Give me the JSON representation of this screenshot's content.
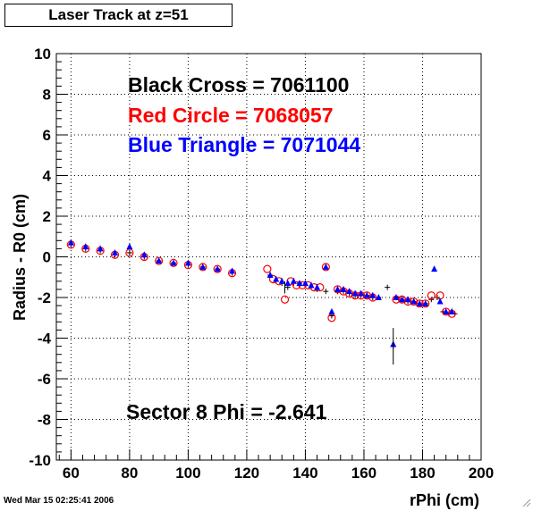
{
  "title": "Laser Track at z=51",
  "timestamp": "Wed Mar 15 02:25:41 2006",
  "legend": [
    {
      "text": "Black Cross  = 7061100",
      "color": "#000000"
    },
    {
      "text": "Red Circle = 7068057",
      "color": "#ff0000"
    },
    {
      "text": "Blue Triangle = 7071044",
      "color": "#0000ff"
    }
  ],
  "annotation": "Sector 8 Phi = -2.641",
  "chart_data": {
    "type": "scatter",
    "title": "Laser Track at z=51",
    "xlabel": "rPhi (cm)",
    "ylabel": "Radius - R0 (cm)",
    "xlim": [
      55,
      200
    ],
    "ylim": [
      -10,
      10
    ],
    "xticks": [
      60,
      80,
      100,
      120,
      140,
      160,
      180,
      200
    ],
    "yticks": [
      -10,
      -8,
      -6,
      -4,
      -2,
      0,
      2,
      4,
      6,
      8,
      10
    ],
    "grid": true,
    "series": [
      {
        "name": "Black Cross  = 7061100",
        "marker": "cross",
        "color": "#000000",
        "points": [
          [
            60,
            0.6
          ],
          [
            65,
            0.4
          ],
          [
            70,
            0.3
          ],
          [
            75,
            0.1
          ],
          [
            80,
            0.2
          ],
          [
            85,
            0.0
          ],
          [
            90,
            -0.2
          ],
          [
            95,
            -0.3
          ],
          [
            100,
            -0.4
          ],
          [
            105,
            -0.5
          ],
          [
            110,
            -0.6
          ],
          [
            115,
            -0.8
          ],
          [
            128,
            -0.9
          ],
          [
            130,
            -1.2
          ],
          [
            132,
            -1.3
          ],
          [
            134,
            -1.5
          ],
          [
            136,
            -1.3
          ],
          [
            138,
            -1.3
          ],
          [
            140,
            -1.4
          ],
          [
            142,
            -1.5
          ],
          [
            144,
            -1.6
          ],
          [
            147,
            -1.7
          ],
          [
            149,
            -2.9
          ],
          [
            151,
            -1.7
          ],
          [
            153,
            -1.7
          ],
          [
            155,
            -1.8
          ],
          [
            157,
            -1.9
          ],
          [
            159,
            -1.9
          ],
          [
            161,
            -1.9
          ],
          [
            163,
            -2.0
          ],
          [
            165,
            -2.0
          ],
          [
            168,
            -1.5
          ],
          [
            170,
            -4.4
          ],
          [
            171,
            -2.0
          ],
          [
            173,
            -2.1
          ],
          [
            175,
            -2.2
          ],
          [
            177,
            -2.2
          ],
          [
            179,
            -2.3
          ],
          [
            181,
            -2.3
          ],
          [
            183,
            -2.1
          ],
          [
            185,
            -2.0
          ],
          [
            187,
            -2.7
          ],
          [
            189,
            -2.8
          ],
          [
            191,
            -2.8
          ]
        ]
      },
      {
        "name": "Red Circle = 7068057",
        "marker": "circle",
        "color": "#ff0000",
        "points": [
          [
            60,
            0.6
          ],
          [
            65,
            0.4
          ],
          [
            70,
            0.3
          ],
          [
            75,
            0.1
          ],
          [
            80,
            0.2
          ],
          [
            85,
            0.0
          ],
          [
            90,
            -0.2
          ],
          [
            95,
            -0.3
          ],
          [
            100,
            -0.4
          ],
          [
            105,
            -0.5
          ],
          [
            110,
            -0.6
          ],
          [
            115,
            -0.8
          ],
          [
            127,
            -0.6
          ],
          [
            129,
            -1.1
          ],
          [
            131,
            -1.2
          ],
          [
            133,
            -2.1
          ],
          [
            135,
            -1.2
          ],
          [
            137,
            -1.4
          ],
          [
            139,
            -1.4
          ],
          [
            141,
            -1.4
          ],
          [
            143,
            -1.5
          ],
          [
            145,
            -1.5
          ],
          [
            147,
            -0.5
          ],
          [
            149,
            -3.0
          ],
          [
            151,
            -1.6
          ],
          [
            153,
            -1.7
          ],
          [
            155,
            -1.8
          ],
          [
            157,
            -1.9
          ],
          [
            159,
            -1.9
          ],
          [
            161,
            -1.9
          ],
          [
            163,
            -2.0
          ],
          [
            171,
            -2.1
          ],
          [
            173,
            -2.1
          ],
          [
            175,
            -2.2
          ],
          [
            177,
            -2.2
          ],
          [
            179,
            -2.3
          ],
          [
            181,
            -2.3
          ],
          [
            183,
            -1.9
          ],
          [
            186,
            -1.9
          ],
          [
            188,
            -2.7
          ],
          [
            190,
            -2.8
          ]
        ]
      },
      {
        "name": "Blue Triangle = 7071044",
        "marker": "triangle",
        "color": "#0000ff",
        "points": [
          [
            60,
            0.7
          ],
          [
            65,
            0.5
          ],
          [
            70,
            0.4
          ],
          [
            75,
            0.2
          ],
          [
            80,
            0.5
          ],
          [
            85,
            0.1
          ],
          [
            90,
            -0.2
          ],
          [
            95,
            -0.3
          ],
          [
            100,
            -0.3
          ],
          [
            105,
            -0.5
          ],
          [
            110,
            -0.6
          ],
          [
            115,
            -0.7
          ],
          [
            128,
            -0.9
          ],
          [
            130,
            -1.1
          ],
          [
            132,
            -1.2
          ],
          [
            134,
            -1.3
          ],
          [
            136,
            -1.2
          ],
          [
            138,
            -1.3
          ],
          [
            140,
            -1.3
          ],
          [
            142,
            -1.4
          ],
          [
            144,
            -1.5
          ],
          [
            147,
            -0.5
          ],
          [
            149,
            -2.7
          ],
          [
            151,
            -1.6
          ],
          [
            153,
            -1.6
          ],
          [
            155,
            -1.7
          ],
          [
            157,
            -1.8
          ],
          [
            159,
            -1.8
          ],
          [
            161,
            -1.9
          ],
          [
            163,
            -1.9
          ],
          [
            165,
            -2.0
          ],
          [
            170,
            -4.3
          ],
          [
            171,
            -2.0
          ],
          [
            173,
            -2.1
          ],
          [
            175,
            -2.1
          ],
          [
            177,
            -2.2
          ],
          [
            179,
            -2.3
          ],
          [
            181,
            -2.3
          ],
          [
            184,
            -0.6
          ],
          [
            186,
            -2.2
          ],
          [
            188,
            -2.7
          ],
          [
            190,
            -2.7
          ]
        ]
      }
    ]
  }
}
